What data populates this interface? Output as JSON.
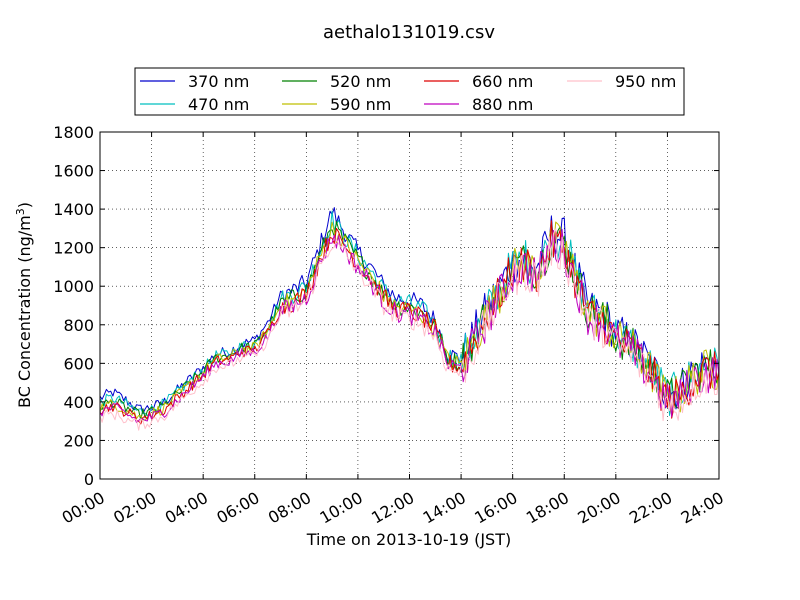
{
  "chart_data": {
    "type": "line",
    "title": "aethalo131019.csv",
    "xlabel": "Time on 2013-10-19 (JST)",
    "ylabel": "BC Concentration (ng/m",
    "ylabel_superscript": "3",
    "ylabel_suffix": ")",
    "xlim_hours": [
      0,
      24
    ],
    "ylim": [
      0,
      1800
    ],
    "xticks": [
      "00:00",
      "02:00",
      "04:00",
      "06:00",
      "08:00",
      "10:00",
      "12:00",
      "14:00",
      "16:00",
      "18:00",
      "20:00",
      "22:00",
      "24:00"
    ],
    "yticks": [
      0,
      200,
      400,
      600,
      800,
      1000,
      1200,
      1400,
      1600,
      1800
    ],
    "grid": true,
    "legend_position": "top",
    "x_hours": [
      0,
      0.5,
      1,
      1.5,
      2,
      2.5,
      3,
      3.5,
      4,
      4.5,
      5,
      5.5,
      6,
      6.5,
      7,
      7.5,
      8,
      8.5,
      9,
      9.5,
      10,
      10.5,
      11,
      11.5,
      12,
      12.5,
      13,
      13.5,
      14,
      14.5,
      15,
      15.5,
      16,
      16.5,
      17,
      17.5,
      18,
      18.5,
      19,
      19.5,
      20,
      20.5,
      21,
      21.5,
      22,
      22.5,
      23,
      23.5,
      24
    ],
    "series": [
      {
        "name": "370 nm",
        "color": "#0000cc",
        "values": [
          420,
          450,
          410,
          360,
          370,
          400,
          460,
          520,
          580,
          650,
          660,
          700,
          720,
          810,
          950,
          980,
          1020,
          1200,
          1390,
          1280,
          1180,
          1100,
          1000,
          940,
          930,
          900,
          820,
          650,
          620,
          750,
          880,
          1000,
          1120,
          1150,
          1100,
          1280,
          1250,
          1050,
          880,
          860,
          760,
          720,
          650,
          560,
          440,
          470,
          560,
          600,
          590
        ]
      },
      {
        "name": "470 nm",
        "color": "#00bfbf",
        "values": [
          400,
          420,
          390,
          350,
          360,
          390,
          450,
          510,
          570,
          640,
          650,
          690,
          700,
          790,
          930,
          960,
          1000,
          1170,
          1350,
          1250,
          1160,
          1080,
          980,
          920,
          910,
          880,
          800,
          640,
          610,
          740,
          870,
          990,
          1110,
          1140,
          1090,
          1260,
          1230,
          1040,
          870,
          850,
          750,
          710,
          640,
          550,
          430,
          460,
          550,
          590,
          580
        ]
      },
      {
        "name": "520 nm",
        "color": "#008000",
        "values": [
          380,
          400,
          370,
          330,
          350,
          380,
          440,
          500,
          560,
          630,
          640,
          680,
          690,
          780,
          910,
          940,
          980,
          1150,
          1320,
          1230,
          1140,
          1060,
          960,
          900,
          890,
          860,
          790,
          620,
          600,
          730,
          860,
          980,
          1100,
          1130,
          1080,
          1250,
          1220,
          1030,
          860,
          840,
          740,
          700,
          630,
          540,
          420,
          450,
          540,
          580,
          570
        ]
      },
      {
        "name": "590 nm",
        "color": "#bfbf00",
        "values": [
          370,
          390,
          360,
          320,
          340,
          370,
          430,
          490,
          550,
          620,
          630,
          670,
          680,
          770,
          900,
          930,
          970,
          1140,
          1300,
          1220,
          1130,
          1050,
          950,
          890,
          880,
          850,
          780,
          610,
          590,
          720,
          850,
          970,
          1090,
          1120,
          1070,
          1240,
          1210,
          1020,
          850,
          830,
          730,
          690,
          620,
          530,
          410,
          440,
          530,
          570,
          560
        ]
      },
      {
        "name": "660 nm",
        "color": "#dd0000",
        "values": [
          360,
          380,
          350,
          310,
          330,
          360,
          420,
          480,
          540,
          610,
          620,
          660,
          670,
          760,
          880,
          920,
          960,
          1130,
          1280,
          1210,
          1120,
          1040,
          940,
          880,
          870,
          840,
          770,
          600,
          580,
          710,
          840,
          960,
          1080,
          1110,
          1060,
          1230,
          1200,
          1010,
          840,
          820,
          720,
          680,
          610,
          520,
          400,
          430,
          520,
          560,
          550
        ]
      },
      {
        "name": "880 nm",
        "color": "#bf00bf",
        "values": [
          350,
          370,
          340,
          300,
          320,
          350,
          410,
          470,
          530,
          600,
          610,
          650,
          660,
          740,
          870,
          900,
          940,
          1110,
          1260,
          1190,
          1100,
          1020,
          920,
          860,
          850,
          820,
          760,
          590,
          570,
          700,
          830,
          950,
          1070,
          1100,
          1050,
          1220,
          1190,
          1000,
          830,
          810,
          710,
          670,
          600,
          510,
          390,
          420,
          510,
          550,
          540
        ]
      },
      {
        "name": "950 nm",
        "color": "#ffc0cb",
        "values": [
          320,
          340,
          310,
          280,
          300,
          330,
          390,
          450,
          510,
          580,
          590,
          630,
          640,
          720,
          850,
          880,
          920,
          1090,
          1230,
          1170,
          1080,
          1000,
          900,
          840,
          830,
          800,
          740,
          570,
          550,
          680,
          810,
          930,
          1050,
          1080,
          1030,
          1200,
          1170,
          980,
          810,
          790,
          690,
          650,
          580,
          490,
          370,
          400,
          490,
          530,
          520
        ]
      }
    ]
  }
}
